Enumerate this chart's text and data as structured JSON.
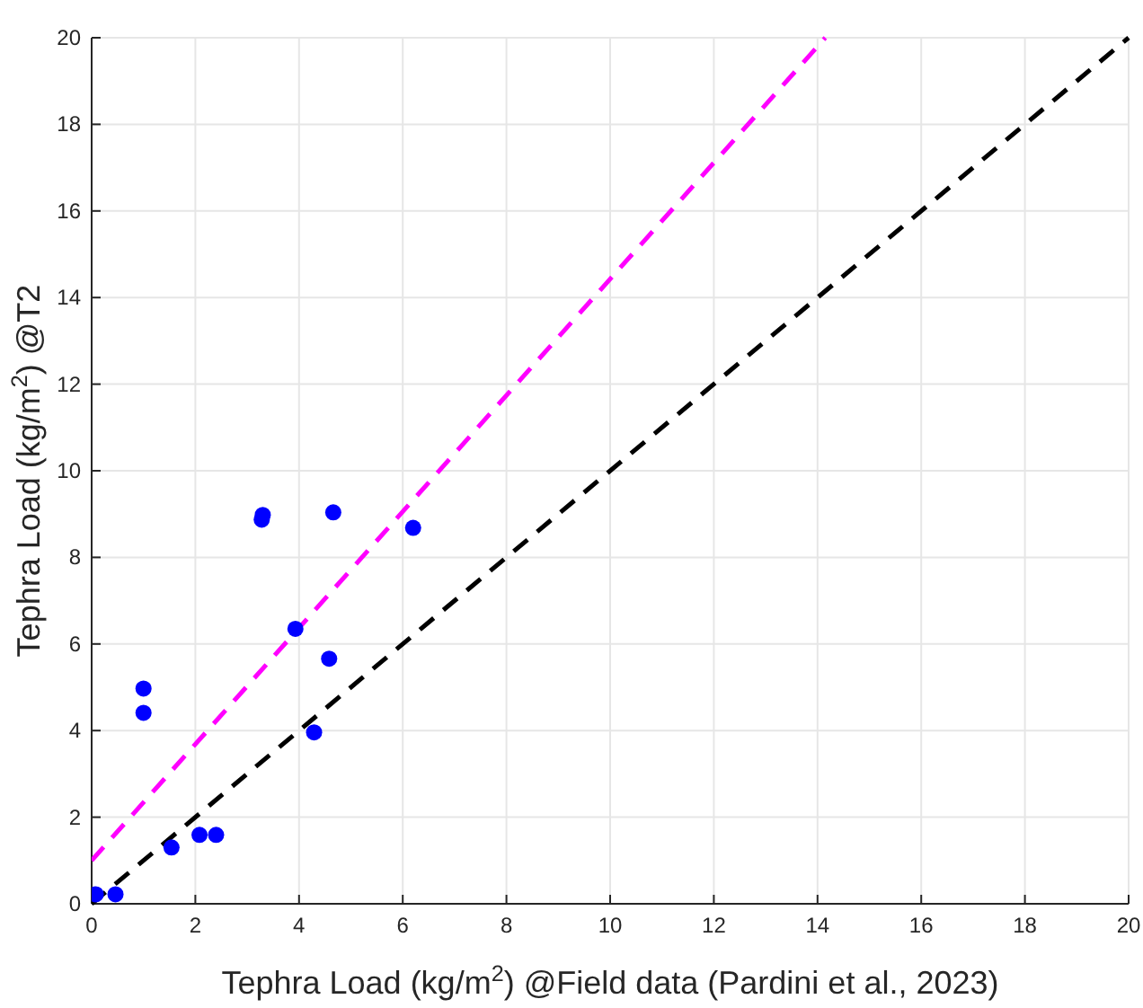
{
  "chart_data": {
    "type": "scatter",
    "xlabel": "Tephra Load (kg/m$^{2}$) @Field data (Pardini et al., 2023)",
    "ylabel": "Tephra Load (kg/m$^{2}$) @T2",
    "xlim": [
      0,
      20
    ],
    "ylim": [
      0,
      20
    ],
    "xticks": [
      0,
      2,
      4,
      6,
      8,
      10,
      12,
      14,
      16,
      18,
      20
    ],
    "yticks": [
      0,
      2,
      4,
      6,
      8,
      10,
      12,
      14,
      16,
      18,
      20
    ],
    "grid": true,
    "marker": "circle",
    "series": [
      {
        "type": "line",
        "color": "#000000",
        "line_style": "dashed",
        "marker": "none",
        "x": [
          0,
          20
        ],
        "values": [
          0,
          20
        ]
      },
      {
        "type": "line",
        "color": "#ff00ff",
        "line_style": "dashed",
        "marker": "none",
        "x": [
          0,
          14.15
        ],
        "values": [
          1,
          20
        ]
      },
      {
        "color": "#0000ff",
        "x": [
          0.08,
          0.46,
          1.0,
          1.0,
          1.54,
          2.08,
          2.4,
          3.28,
          3.3,
          3.93,
          4.29,
          4.58,
          4.66,
          6.2
        ],
        "values": [
          0.22,
          0.22,
          4.97,
          4.41,
          1.3,
          1.59,
          1.59,
          8.87,
          8.98,
          6.35,
          3.96,
          5.66,
          9.04,
          8.68
        ]
      }
    ]
  }
}
